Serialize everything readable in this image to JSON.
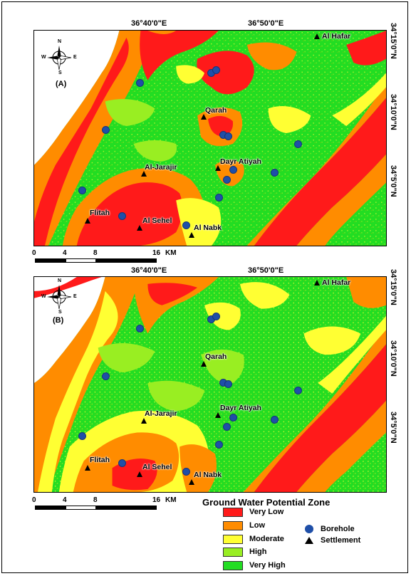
{
  "map_top": {
    "panel_label": "(A)",
    "longitude_labels": [
      "36°40'0\"E",
      "36°50'0\"E"
    ],
    "latitude_labels": [
      "34°15'0\"N",
      "34°10'0\"N",
      "34°5'0\"N"
    ],
    "settlements": [
      "Al Hafar",
      "Qarah",
      "Dayr Atiyah",
      "Al-Jarajir",
      "Flitah",
      "Al Sehel",
      "Al Nabk"
    ],
    "scale": {
      "ticks": [
        "0",
        "4",
        "8",
        "16"
      ],
      "units": "KM"
    }
  },
  "map_bottom": {
    "panel_label": "(B)",
    "longitude_labels": [
      "36°40'0\"E",
      "36°50'0\"E"
    ],
    "latitude_labels": [
      "34°15'0\"N",
      "34°10'0\"N",
      "34°5'0\"N"
    ],
    "settlements": [
      "Al Hafar",
      "Qarah",
      "Dayr Atiyah",
      "Al-Jarajir",
      "Flitah",
      "Al Sehel",
      "Al Nabk"
    ],
    "scale": {
      "ticks": [
        "0",
        "4",
        "8",
        "16"
      ],
      "units": "KM"
    }
  },
  "compass": {
    "n": "N",
    "s": "S",
    "e": "E",
    "w": "W"
  },
  "legend": {
    "title": "Ground Water Potential Zone",
    "zones": [
      {
        "label": "Very Low",
        "color": "#ff1a1a"
      },
      {
        "label": "Low",
        "color": "#ff8c00"
      },
      {
        "label": "Moderate",
        "color": "#ffff33"
      },
      {
        "label": "High",
        "color": "#99ee22"
      },
      {
        "label": "Very High",
        "color": "#22dd22"
      }
    ],
    "symbols": [
      {
        "label": "Borehole",
        "icon": "borehole-dot-icon"
      },
      {
        "label": "Settlement",
        "icon": "settlement-triangle-icon"
      }
    ]
  }
}
